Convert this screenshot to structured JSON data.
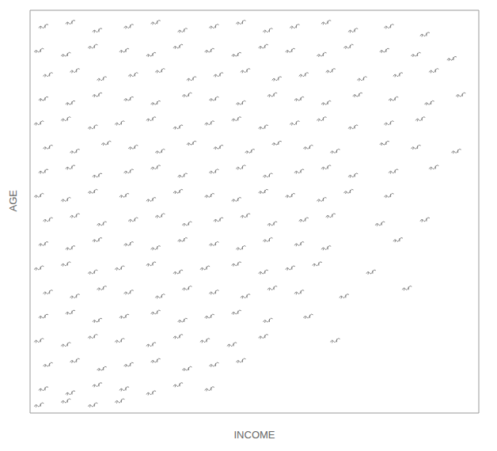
{
  "chart_data": {
    "type": "scatter",
    "x_label": "INCOME",
    "y_label": "AGE",
    "xlim": [
      0,
      100
    ],
    "ylim": [
      0,
      100
    ],
    "xticks": [],
    "yticks": [],
    "tick_labels": false,
    "grid": false,
    "marker": "glyph",
    "color": "#777777",
    "x": [
      3,
      9,
      15,
      22,
      28,
      34,
      41,
      47,
      53,
      59,
      66,
      72,
      80,
      88,
      2,
      8,
      14,
      21,
      27,
      33,
      40,
      46,
      52,
      58,
      65,
      71,
      79,
      86,
      94,
      4,
      10,
      16,
      23,
      29,
      36,
      42,
      48,
      55,
      61,
      67,
      74,
      82,
      90,
      3,
      9,
      15,
      22,
      28,
      35,
      41,
      47,
      54,
      60,
      66,
      73,
      81,
      89,
      96,
      2,
      8,
      14,
      20,
      27,
      33,
      40,
      46,
      52,
      59,
      65,
      72,
      80,
      87,
      4,
      10,
      17,
      23,
      29,
      36,
      42,
      49,
      55,
      62,
      68,
      79,
      86,
      95,
      3,
      9,
      15,
      22,
      28,
      34,
      41,
      47,
      53,
      60,
      66,
      72,
      81,
      90,
      2,
      8,
      14,
      21,
      27,
      33,
      40,
      46,
      52,
      58,
      65,
      71,
      80,
      4,
      10,
      16,
      23,
      29,
      35,
      42,
      48,
      54,
      61,
      67,
      78,
      88,
      3,
      9,
      15,
      22,
      28,
      34,
      41,
      47,
      53,
      60,
      66,
      82,
      2,
      8,
      14,
      20,
      27,
      33,
      39,
      46,
      52,
      58,
      64,
      76,
      4,
      10,
      16,
      22,
      29,
      35,
      41,
      48,
      54,
      60,
      70,
      84,
      3,
      9,
      15,
      21,
      28,
      34,
      40,
      46,
      53,
      62,
      2,
      8,
      14,
      20,
      27,
      33,
      39,
      45,
      52,
      68,
      4,
      10,
      16,
      22,
      28,
      35,
      41,
      47,
      3,
      9,
      15,
      21,
      27,
      33,
      40,
      2,
      8,
      14,
      20
    ],
    "values": [
      96,
      97,
      95,
      96,
      97,
      95,
      96,
      97,
      95,
      96,
      97,
      95,
      96,
      94,
      90,
      89,
      91,
      90,
      89,
      91,
      90,
      89,
      91,
      90,
      89,
      91,
      90,
      89,
      88,
      84,
      85,
      83,
      84,
      85,
      83,
      84,
      85,
      83,
      84,
      85,
      83,
      84,
      85,
      78,
      77,
      79,
      78,
      77,
      79,
      78,
      77,
      79,
      78,
      77,
      79,
      78,
      77,
      79,
      72,
      73,
      71,
      72,
      73,
      71,
      72,
      73,
      71,
      72,
      73,
      71,
      72,
      73,
      66,
      65,
      67,
      66,
      65,
      67,
      66,
      65,
      67,
      66,
      65,
      67,
      66,
      65,
      60,
      61,
      59,
      60,
      61,
      59,
      60,
      61,
      59,
      60,
      61,
      59,
      60,
      61,
      54,
      53,
      55,
      54,
      53,
      55,
      54,
      53,
      55,
      54,
      53,
      55,
      54,
      48,
      49,
      47,
      48,
      49,
      47,
      48,
      49,
      47,
      48,
      49,
      47,
      48,
      42,
      41,
      43,
      42,
      41,
      43,
      42,
      41,
      43,
      42,
      41,
      43,
      36,
      37,
      35,
      36,
      37,
      35,
      36,
      37,
      35,
      36,
      37,
      35,
      30,
      29,
      31,
      30,
      29,
      31,
      30,
      29,
      31,
      30,
      29,
      31,
      24,
      25,
      23,
      24,
      25,
      23,
      24,
      25,
      23,
      24,
      18,
      17,
      19,
      18,
      17,
      19,
      18,
      17,
      19,
      18,
      12,
      13,
      11,
      12,
      13,
      11,
      12,
      13,
      6,
      5,
      7,
      6,
      5,
      7,
      6,
      2,
      3,
      2,
      3
    ]
  }
}
